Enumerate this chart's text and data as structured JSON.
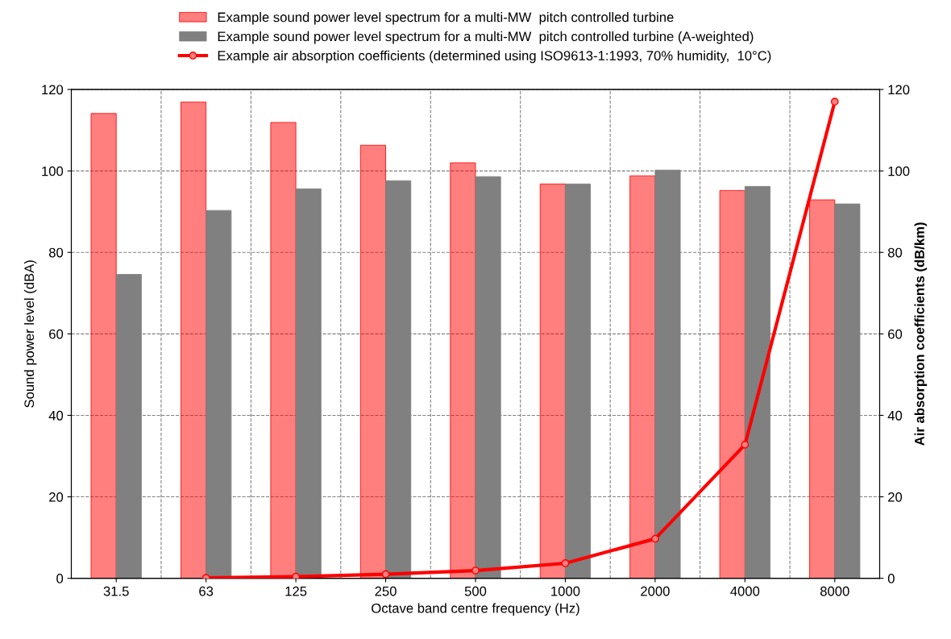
{
  "chart_data": {
    "type": "bar",
    "categories": [
      "31.5",
      "63",
      "125",
      "250",
      "500",
      "1000",
      "2000",
      "4000",
      "8000"
    ],
    "xlabel": "Octave band centre frequency (Hz)",
    "ylabel": "Sound power level (dBA)",
    "y2label": "Air absorption coefficients (dB/km)",
    "series": [
      {
        "name": "Example sound power level spectrum for a multi-MW  pitch controlled turbine",
        "color": "#ff0000",
        "values": [
          114.1,
          116.9,
          111.9,
          106.3,
          102.0,
          96.8,
          98.8,
          95.2,
          92.9
        ]
      },
      {
        "name": "Example sound power level spectrum for a multi-MW  pitch controlled turbine (A-weighted)",
        "color": "#808080",
        "values": [
          74.6,
          90.3,
          95.6,
          97.6,
          98.6,
          96.8,
          100.2,
          96.2,
          91.9
        ]
      },
      {
        "name": "Example air absorption coefficients (determined using ISO9613-1:1993, 70% humidity,  10°C)",
        "color": "#ff0000",
        "type": "line",
        "axis": "y2",
        "marker": "circle",
        "values": [
          null,
          0.1,
          0.4,
          1.0,
          1.9,
          3.7,
          9.7,
          32.8,
          117.0
        ]
      }
    ],
    "ylim": [
      0,
      120
    ],
    "yticks": [
      0,
      20,
      40,
      60,
      80,
      100,
      120
    ],
    "y2lim": [
      0,
      120
    ],
    "y2ticks": [
      0,
      20,
      40,
      60,
      80,
      100,
      120
    ],
    "grid": true,
    "legend": "top"
  }
}
